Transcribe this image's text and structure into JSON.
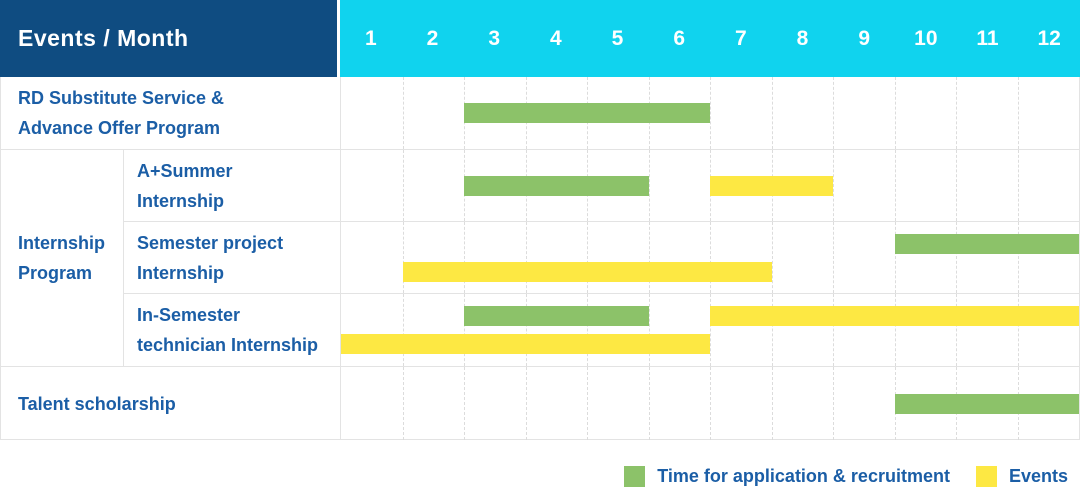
{
  "header": {
    "title": "Events / Month",
    "months": [
      "1",
      "2",
      "3",
      "4",
      "5",
      "6",
      "7",
      "8",
      "9",
      "10",
      "11",
      "12"
    ]
  },
  "colors": {
    "header_bg": "#0f4c81",
    "months_bg": "#10d3ee",
    "label_text": "#1b5ea6",
    "application_green": "#8cc269",
    "event_yellow": "#fde843",
    "grid_line": "#e3e3e3"
  },
  "legend": {
    "items": [
      {
        "color": "application_green",
        "label": "Time for application & recruitment"
      },
      {
        "color": "event_yellow",
        "label": "Events"
      }
    ]
  },
  "chart_data": {
    "type": "gantt",
    "title": "Events / Month",
    "x_axis": {
      "label": "Month",
      "ticks": [
        1,
        2,
        3,
        4,
        5,
        6,
        7,
        8,
        9,
        10,
        11,
        12
      ],
      "xlim": [
        1,
        12
      ]
    },
    "bar_meaning": {
      "application_green": "Time for application & recruitment",
      "event_yellow": "Events"
    },
    "group": {
      "label_lines": [
        "Internship",
        "Program"
      ],
      "rows": [
        2,
        3,
        4
      ]
    },
    "rows": [
      {
        "label_lines": [
          "RD Substitute Service &",
          "Advance Offer Program"
        ],
        "in_group": false,
        "bars": [
          {
            "color": "application_green",
            "lane": "center",
            "start_month": 3,
            "end_month": 6
          }
        ]
      },
      {
        "label_lines": [
          "A+Summer",
          "Internship"
        ],
        "in_group": true,
        "bars": [
          {
            "color": "application_green",
            "lane": "center",
            "start_month": 3,
            "end_month": 5
          },
          {
            "color": "event_yellow",
            "lane": "center",
            "start_month": 7,
            "end_month": 8
          }
        ]
      },
      {
        "label_lines": [
          "Semester project",
          "Internship"
        ],
        "in_group": true,
        "bars": [
          {
            "color": "application_green",
            "lane": "top",
            "start_month": 10,
            "end_month": 12
          },
          {
            "color": "event_yellow",
            "lane": "bottom",
            "start_month": 2,
            "end_month": 7
          }
        ]
      },
      {
        "label_lines": [
          "In-Semester",
          "technician Internship"
        ],
        "in_group": true,
        "bars": [
          {
            "color": "application_green",
            "lane": "top",
            "start_month": 3,
            "end_month": 5
          },
          {
            "color": "event_yellow",
            "lane": "top",
            "start_month": 7,
            "end_month": 12
          },
          {
            "color": "event_yellow",
            "lane": "bottom",
            "start_month": 1,
            "end_month": 6
          }
        ]
      },
      {
        "label_lines": [
          "Talent scholarship"
        ],
        "in_group": false,
        "bars": [
          {
            "color": "application_green",
            "lane": "center",
            "start_month": 10,
            "end_month": 12
          }
        ]
      }
    ]
  }
}
